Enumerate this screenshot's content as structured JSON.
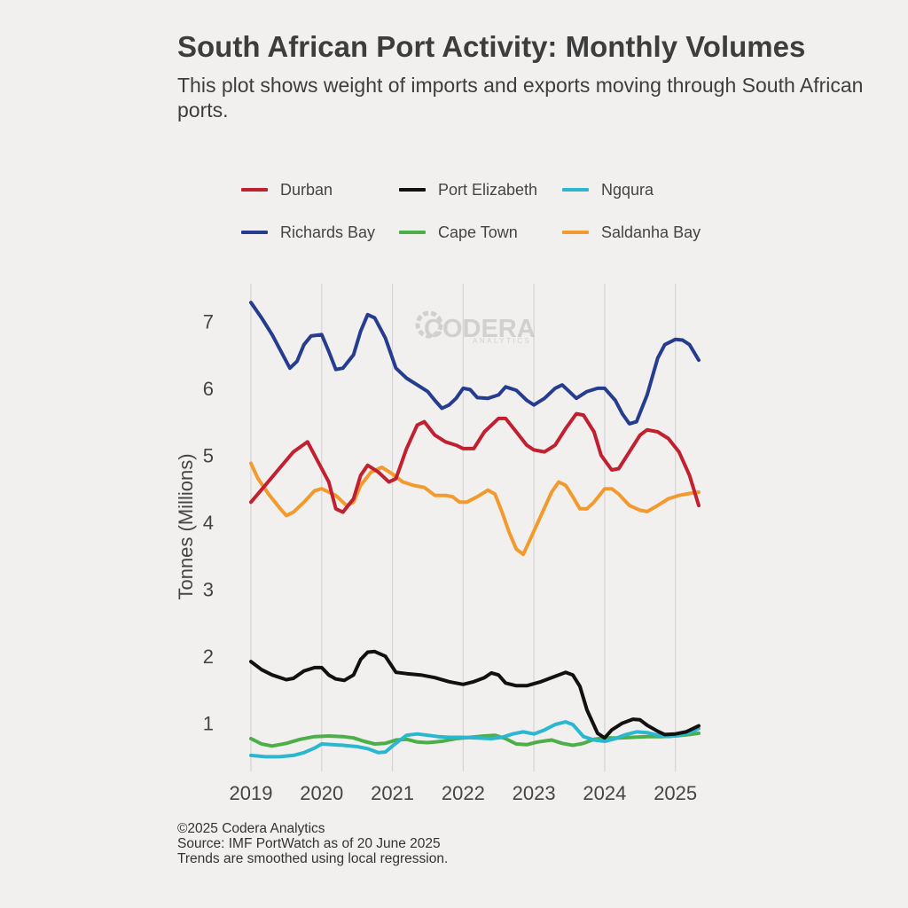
{
  "title": "South African Port Activity: Monthly Volumes",
  "subtitle": "This plot shows weight of imports and exports moving through South African ports.",
  "watermark": {
    "brand": "CODERA",
    "tagline": "ANALYTICS"
  },
  "footer": {
    "copyright": "©2025 Codera Analytics",
    "source": "Source: IMF PortWatch as of 20 June 2025",
    "note": "Trends are smoothed using local regression."
  },
  "chart_data": {
    "type": "line",
    "title": "South African Port Activity: Monthly Volumes",
    "xlabel": "",
    "ylabel": "Tonnes (Millions)",
    "xlim": [
      2019,
      2025.33
    ],
    "ylim": [
      0.28,
      7.56
    ],
    "x_ticks": [
      2019,
      2020,
      2021,
      2022,
      2023,
      2024,
      2025
    ],
    "y_ticks": [
      1,
      2,
      3,
      4,
      5,
      6,
      7
    ],
    "grid": "vertical",
    "legend_placement": "top",
    "series": [
      {
        "name": "Durban",
        "color": "#c0202f",
        "points": [
          [
            2019.0,
            4.3
          ],
          [
            2019.2,
            4.55
          ],
          [
            2019.4,
            4.8
          ],
          [
            2019.6,
            5.05
          ],
          [
            2019.8,
            5.2
          ],
          [
            2019.95,
            4.9
          ],
          [
            2020.1,
            4.6
          ],
          [
            2020.2,
            4.2
          ],
          [
            2020.3,
            4.15
          ],
          [
            2020.45,
            4.35
          ],
          [
            2020.55,
            4.7
          ],
          [
            2020.65,
            4.85
          ],
          [
            2020.8,
            4.75
          ],
          [
            2020.95,
            4.6
          ],
          [
            2021.05,
            4.65
          ],
          [
            2021.2,
            5.1
          ],
          [
            2021.35,
            5.45
          ],
          [
            2021.45,
            5.5
          ],
          [
            2021.6,
            5.3
          ],
          [
            2021.75,
            5.2
          ],
          [
            2021.9,
            5.15
          ],
          [
            2022.0,
            5.1
          ],
          [
            2022.15,
            5.1
          ],
          [
            2022.3,
            5.35
          ],
          [
            2022.5,
            5.55
          ],
          [
            2022.6,
            5.55
          ],
          [
            2022.75,
            5.35
          ],
          [
            2022.9,
            5.15
          ],
          [
            2023.0,
            5.08
          ],
          [
            2023.15,
            5.05
          ],
          [
            2023.3,
            5.15
          ],
          [
            2023.45,
            5.4
          ],
          [
            2023.6,
            5.62
          ],
          [
            2023.7,
            5.6
          ],
          [
            2023.85,
            5.35
          ],
          [
            2023.95,
            5.0
          ],
          [
            2024.1,
            4.78
          ],
          [
            2024.2,
            4.8
          ],
          [
            2024.35,
            5.05
          ],
          [
            2024.5,
            5.3
          ],
          [
            2024.6,
            5.38
          ],
          [
            2024.75,
            5.35
          ],
          [
            2024.9,
            5.25
          ],
          [
            2025.05,
            5.05
          ],
          [
            2025.2,
            4.7
          ],
          [
            2025.33,
            4.25
          ]
        ]
      },
      {
        "name": "Port Elizabeth",
        "color": "#111111",
        "points": [
          [
            2019.0,
            1.92
          ],
          [
            2019.15,
            1.8
          ],
          [
            2019.3,
            1.72
          ],
          [
            2019.5,
            1.65
          ],
          [
            2019.6,
            1.67
          ],
          [
            2019.75,
            1.78
          ],
          [
            2019.9,
            1.83
          ],
          [
            2020.0,
            1.83
          ],
          [
            2020.1,
            1.72
          ],
          [
            2020.2,
            1.66
          ],
          [
            2020.32,
            1.64
          ],
          [
            2020.45,
            1.72
          ],
          [
            2020.55,
            1.95
          ],
          [
            2020.65,
            2.06
          ],
          [
            2020.75,
            2.07
          ],
          [
            2020.9,
            2.0
          ],
          [
            2021.05,
            1.76
          ],
          [
            2021.2,
            1.74
          ],
          [
            2021.4,
            1.72
          ],
          [
            2021.6,
            1.68
          ],
          [
            2021.8,
            1.62
          ],
          [
            2022.0,
            1.58
          ],
          [
            2022.15,
            1.62
          ],
          [
            2022.3,
            1.68
          ],
          [
            2022.4,
            1.75
          ],
          [
            2022.5,
            1.72
          ],
          [
            2022.6,
            1.6
          ],
          [
            2022.75,
            1.56
          ],
          [
            2022.9,
            1.56
          ],
          [
            2023.1,
            1.62
          ],
          [
            2023.3,
            1.7
          ],
          [
            2023.45,
            1.76
          ],
          [
            2023.55,
            1.72
          ],
          [
            2023.65,
            1.55
          ],
          [
            2023.75,
            1.2
          ],
          [
            2023.9,
            0.85
          ],
          [
            2024.0,
            0.78
          ],
          [
            2024.1,
            0.9
          ],
          [
            2024.25,
            1.0
          ],
          [
            2024.4,
            1.06
          ],
          [
            2024.5,
            1.05
          ],
          [
            2024.6,
            0.97
          ],
          [
            2024.75,
            0.88
          ],
          [
            2024.85,
            0.83
          ],
          [
            2025.0,
            0.84
          ],
          [
            2025.15,
            0.87
          ],
          [
            2025.33,
            0.96
          ]
        ]
      },
      {
        "name": "Ngqura",
        "color": "#2ab7cf",
        "points": [
          [
            2019.0,
            0.52
          ],
          [
            2019.2,
            0.5
          ],
          [
            2019.4,
            0.5
          ],
          [
            2019.6,
            0.52
          ],
          [
            2019.75,
            0.56
          ],
          [
            2019.9,
            0.63
          ],
          [
            2020.0,
            0.69
          ],
          [
            2020.15,
            0.68
          ],
          [
            2020.3,
            0.67
          ],
          [
            2020.5,
            0.65
          ],
          [
            2020.65,
            0.62
          ],
          [
            2020.8,
            0.56
          ],
          [
            2020.9,
            0.57
          ],
          [
            2021.0,
            0.66
          ],
          [
            2021.1,
            0.74
          ],
          [
            2021.2,
            0.82
          ],
          [
            2021.35,
            0.84
          ],
          [
            2021.5,
            0.82
          ],
          [
            2021.65,
            0.8
          ],
          [
            2021.8,
            0.79
          ],
          [
            2022.0,
            0.79
          ],
          [
            2022.2,
            0.78
          ],
          [
            2022.4,
            0.77
          ],
          [
            2022.55,
            0.79
          ],
          [
            2022.7,
            0.84
          ],
          [
            2022.85,
            0.87
          ],
          [
            2023.0,
            0.84
          ],
          [
            2023.15,
            0.9
          ],
          [
            2023.3,
            0.98
          ],
          [
            2023.45,
            1.02
          ],
          [
            2023.55,
            0.98
          ],
          [
            2023.7,
            0.8
          ],
          [
            2023.85,
            0.75
          ],
          [
            2024.0,
            0.73
          ],
          [
            2024.15,
            0.77
          ],
          [
            2024.3,
            0.83
          ],
          [
            2024.45,
            0.87
          ],
          [
            2024.6,
            0.86
          ],
          [
            2024.75,
            0.82
          ],
          [
            2024.9,
            0.8
          ],
          [
            2025.05,
            0.82
          ],
          [
            2025.2,
            0.86
          ],
          [
            2025.33,
            0.92
          ]
        ]
      },
      {
        "name": "Richards Bay",
        "color": "#263d8f",
        "points": [
          [
            2019.0,
            7.28
          ],
          [
            2019.15,
            7.05
          ],
          [
            2019.3,
            6.8
          ],
          [
            2019.45,
            6.5
          ],
          [
            2019.55,
            6.3
          ],
          [
            2019.65,
            6.4
          ],
          [
            2019.75,
            6.65
          ],
          [
            2019.85,
            6.78
          ],
          [
            2020.0,
            6.8
          ],
          [
            2020.1,
            6.55
          ],
          [
            2020.2,
            6.28
          ],
          [
            2020.3,
            6.3
          ],
          [
            2020.45,
            6.5
          ],
          [
            2020.55,
            6.85
          ],
          [
            2020.65,
            7.1
          ],
          [
            2020.75,
            7.05
          ],
          [
            2020.9,
            6.75
          ],
          [
            2021.05,
            6.3
          ],
          [
            2021.2,
            6.15
          ],
          [
            2021.35,
            6.05
          ],
          [
            2021.5,
            5.95
          ],
          [
            2021.6,
            5.82
          ],
          [
            2021.7,
            5.7
          ],
          [
            2021.8,
            5.75
          ],
          [
            2021.9,
            5.85
          ],
          [
            2022.0,
            6.0
          ],
          [
            2022.1,
            5.98
          ],
          [
            2022.2,
            5.86
          ],
          [
            2022.35,
            5.85
          ],
          [
            2022.5,
            5.9
          ],
          [
            2022.6,
            6.02
          ],
          [
            2022.75,
            5.97
          ],
          [
            2022.9,
            5.82
          ],
          [
            2023.0,
            5.75
          ],
          [
            2023.15,
            5.85
          ],
          [
            2023.3,
            6.0
          ],
          [
            2023.4,
            6.05
          ],
          [
            2023.5,
            5.95
          ],
          [
            2023.6,
            5.85
          ],
          [
            2023.75,
            5.95
          ],
          [
            2023.9,
            6.0
          ],
          [
            2024.0,
            6.0
          ],
          [
            2024.15,
            5.82
          ],
          [
            2024.25,
            5.62
          ],
          [
            2024.35,
            5.47
          ],
          [
            2024.45,
            5.5
          ],
          [
            2024.6,
            5.9
          ],
          [
            2024.75,
            6.45
          ],
          [
            2024.85,
            6.65
          ],
          [
            2025.0,
            6.73
          ],
          [
            2025.1,
            6.72
          ],
          [
            2025.2,
            6.65
          ],
          [
            2025.33,
            6.42
          ]
        ]
      },
      {
        "name": "Cape Town",
        "color": "#4caf4a",
        "points": [
          [
            2019.0,
            0.77
          ],
          [
            2019.15,
            0.69
          ],
          [
            2019.3,
            0.66
          ],
          [
            2019.5,
            0.7
          ],
          [
            2019.7,
            0.76
          ],
          [
            2019.9,
            0.8
          ],
          [
            2020.1,
            0.81
          ],
          [
            2020.3,
            0.8
          ],
          [
            2020.45,
            0.78
          ],
          [
            2020.6,
            0.73
          ],
          [
            2020.75,
            0.69
          ],
          [
            2020.9,
            0.7
          ],
          [
            2021.05,
            0.75
          ],
          [
            2021.2,
            0.76
          ],
          [
            2021.35,
            0.72
          ],
          [
            2021.5,
            0.71
          ],
          [
            2021.7,
            0.73
          ],
          [
            2021.9,
            0.77
          ],
          [
            2022.1,
            0.79
          ],
          [
            2022.3,
            0.81
          ],
          [
            2022.45,
            0.82
          ],
          [
            2022.6,
            0.77
          ],
          [
            2022.75,
            0.69
          ],
          [
            2022.9,
            0.68
          ],
          [
            2023.05,
            0.72
          ],
          [
            2023.25,
            0.75
          ],
          [
            2023.4,
            0.7
          ],
          [
            2023.55,
            0.67
          ],
          [
            2023.7,
            0.7
          ],
          [
            2023.85,
            0.76
          ],
          [
            2024.0,
            0.78
          ],
          [
            2024.2,
            0.78
          ],
          [
            2024.4,
            0.79
          ],
          [
            2024.6,
            0.8
          ],
          [
            2024.8,
            0.8
          ],
          [
            2025.0,
            0.81
          ],
          [
            2025.2,
            0.83
          ],
          [
            2025.33,
            0.85
          ]
        ]
      },
      {
        "name": "Saldanha Bay",
        "color": "#f39a2e",
        "points": [
          [
            2019.0,
            4.88
          ],
          [
            2019.1,
            4.65
          ],
          [
            2019.25,
            4.42
          ],
          [
            2019.4,
            4.22
          ],
          [
            2019.5,
            4.1
          ],
          [
            2019.6,
            4.15
          ],
          [
            2019.75,
            4.3
          ],
          [
            2019.9,
            4.47
          ],
          [
            2020.0,
            4.5
          ],
          [
            2020.1,
            4.45
          ],
          [
            2020.2,
            4.4
          ],
          [
            2020.35,
            4.25
          ],
          [
            2020.45,
            4.3
          ],
          [
            2020.55,
            4.55
          ],
          [
            2020.7,
            4.75
          ],
          [
            2020.85,
            4.82
          ],
          [
            2021.0,
            4.72
          ],
          [
            2021.15,
            4.6
          ],
          [
            2021.3,
            4.55
          ],
          [
            2021.45,
            4.52
          ],
          [
            2021.6,
            4.4
          ],
          [
            2021.75,
            4.4
          ],
          [
            2021.85,
            4.38
          ],
          [
            2021.95,
            4.3
          ],
          [
            2022.05,
            4.3
          ],
          [
            2022.2,
            4.38
          ],
          [
            2022.35,
            4.48
          ],
          [
            2022.45,
            4.42
          ],
          [
            2022.55,
            4.15
          ],
          [
            2022.65,
            3.85
          ],
          [
            2022.75,
            3.6
          ],
          [
            2022.85,
            3.52
          ],
          [
            2022.95,
            3.75
          ],
          [
            2023.1,
            4.1
          ],
          [
            2023.25,
            4.45
          ],
          [
            2023.35,
            4.6
          ],
          [
            2023.45,
            4.55
          ],
          [
            2023.55,
            4.38
          ],
          [
            2023.65,
            4.2
          ],
          [
            2023.75,
            4.2
          ],
          [
            2023.85,
            4.3
          ],
          [
            2024.0,
            4.5
          ],
          [
            2024.1,
            4.5
          ],
          [
            2024.2,
            4.42
          ],
          [
            2024.35,
            4.25
          ],
          [
            2024.5,
            4.18
          ],
          [
            2024.6,
            4.16
          ],
          [
            2024.75,
            4.25
          ],
          [
            2024.9,
            4.35
          ],
          [
            2025.05,
            4.4
          ],
          [
            2025.2,
            4.43
          ],
          [
            2025.33,
            4.45
          ]
        ]
      }
    ]
  }
}
